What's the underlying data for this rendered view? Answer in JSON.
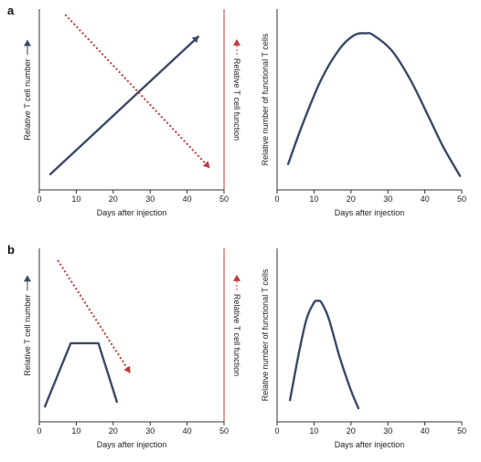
{
  "colors": {
    "number": "#3b4a66",
    "function": "#c0393b",
    "axis": "#333333"
  },
  "chart_data": [
    {
      "panel": "a",
      "type": "line",
      "xlabel": "Days after injection",
      "ylabel": "Relative T cell number",
      "ylabel_right": "Relative T cell function",
      "xlim": [
        0,
        50
      ],
      "xticks": [
        "0",
        "10",
        "20",
        "30",
        "40",
        "50"
      ],
      "ylim": [
        0,
        1
      ],
      "series": [
        {
          "role": "number",
          "style": "solid-arrow",
          "x": [
            3,
            43
          ],
          "y": [
            0.06,
            0.87
          ]
        },
        {
          "role": "function",
          "style": "dotted-arrow",
          "x": [
            7,
            46
          ],
          "y": [
            1.0,
            0.1
          ]
        }
      ]
    },
    {
      "panel": "a-right",
      "type": "line",
      "xlabel": "Days after injection",
      "ylabel": "Relative number of functional T cells",
      "xlim": [
        0,
        50
      ],
      "xticks": [
        "0",
        "10",
        "20",
        "30",
        "40",
        "50"
      ],
      "ylim": [
        0,
        1
      ],
      "series": [
        {
          "role": "number",
          "style": "solid",
          "x": [
            3,
            7,
            12,
            17,
            21,
            24,
            26,
            31,
            36,
            41,
            45,
            49.5
          ],
          "y": [
            0.12,
            0.36,
            0.62,
            0.8,
            0.88,
            0.89,
            0.88,
            0.79,
            0.62,
            0.4,
            0.22,
            0.05
          ]
        }
      ]
    },
    {
      "panel": "b",
      "type": "line",
      "xlabel": "Days after injection",
      "ylabel": "Relative T cell number",
      "ylabel_right": "Relative T cell function",
      "xlim": [
        0,
        50
      ],
      "xticks": [
        "0",
        "10",
        "20",
        "30",
        "40",
        "50"
      ],
      "ylim": [
        0,
        1
      ],
      "series": [
        {
          "role": "number",
          "style": "solid",
          "x": [
            1.5,
            8.5,
            16,
            21
          ],
          "y": [
            0.06,
            0.45,
            0.45,
            0.09
          ]
        },
        {
          "role": "function",
          "style": "dotted-arrow",
          "x": [
            5,
            24.5
          ],
          "y": [
            0.96,
            0.27
          ]
        }
      ]
    },
    {
      "panel": "b-right",
      "type": "line",
      "xlabel": "Days after injection",
      "ylabel": "Relative number of functional T cells",
      "xlim": [
        0,
        50
      ],
      "xticks": [
        "0",
        "10",
        "20",
        "30",
        "40",
        "50"
      ],
      "ylim": [
        0,
        1
      ],
      "series": [
        {
          "role": "number",
          "style": "solid",
          "x": [
            3.5,
            6,
            8,
            10,
            11,
            12,
            14,
            17,
            20,
            22
          ],
          "y": [
            0.1,
            0.4,
            0.6,
            0.7,
            0.71,
            0.7,
            0.6,
            0.36,
            0.16,
            0.05
          ]
        }
      ]
    }
  ]
}
